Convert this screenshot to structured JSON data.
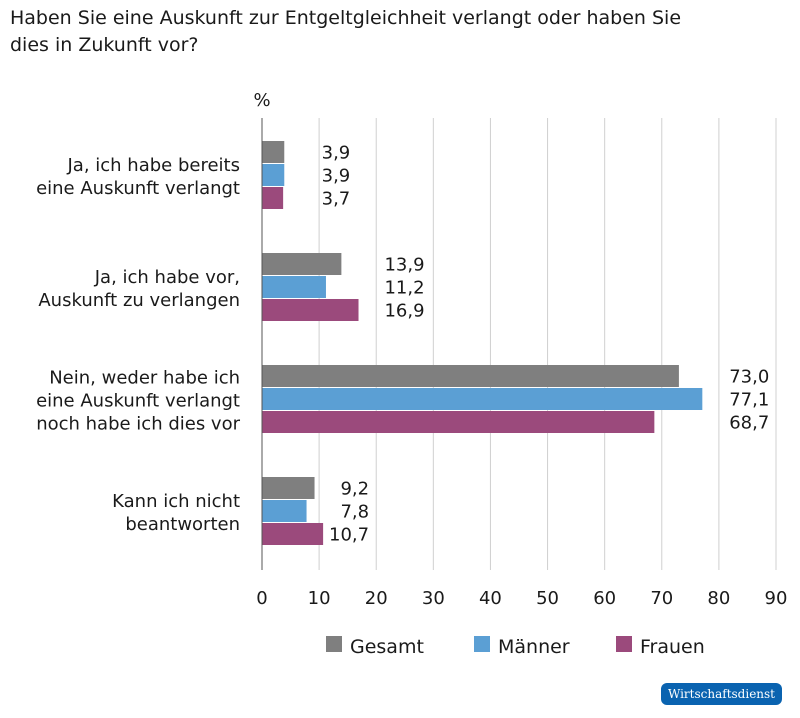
{
  "title": "Haben Sie eine Auskunft zur Entgeltgleichheit verlangt oder haben Sie dies in Zukunft vor?",
  "logo": "Wirtschaftsdienst",
  "chart_data": {
    "type": "bar",
    "orientation": "horizontal",
    "unit_label": "%",
    "categories": [
      [
        "Ja, ich habe bereits",
        "eine Auskunft verlangt"
      ],
      [
        "Ja, ich habe vor,",
        "Auskunft zu verlangen"
      ],
      [
        "Nein, weder habe ich",
        "eine Auskunft verlangt",
        "noch habe ich dies vor"
      ],
      [
        "Kann ich nicht",
        "beantworten"
      ]
    ],
    "series": [
      {
        "name": "Gesamt",
        "color": "#7f7f7f",
        "values": [
          3.9,
          13.9,
          73.0,
          9.2
        ],
        "labels": [
          "3,9",
          "13,9",
          "73,0",
          "9,2"
        ]
      },
      {
        "name": "Männer",
        "color": "#5b9fd4",
        "values": [
          3.9,
          11.2,
          77.1,
          7.8
        ],
        "labels": [
          "3,9",
          "11,2",
          "77,1",
          "7,8"
        ]
      },
      {
        "name": "Frauen",
        "color": "#9b4a7c",
        "values": [
          3.7,
          16.9,
          68.7,
          10.7
        ],
        "labels": [
          "3,7",
          "16,9",
          "68,7",
          "10,7"
        ]
      }
    ],
    "xlim": [
      0,
      90
    ],
    "xticks": [
      0,
      10,
      20,
      30,
      40,
      50,
      60,
      70,
      80,
      90
    ],
    "grid": true,
    "legend": "bottom"
  }
}
